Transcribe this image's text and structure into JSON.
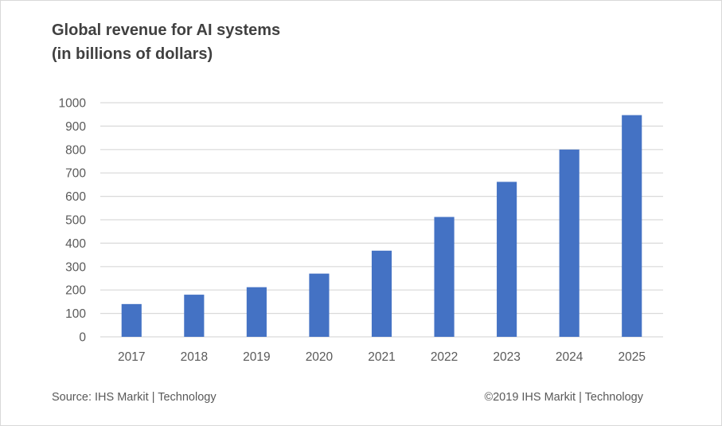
{
  "chart_data": {
    "type": "bar",
    "title_line1": "Global revenue for AI systems",
    "title_line2": "(in billions of dollars)",
    "categories": [
      "2017",
      "2018",
      "2019",
      "2020",
      "2021",
      "2022",
      "2023",
      "2024",
      "2025"
    ],
    "values": [
      140,
      180,
      212,
      270,
      368,
      512,
      662,
      800,
      947
    ],
    "ylim": [
      0,
      1000
    ],
    "yticks": [
      0,
      100,
      200,
      300,
      400,
      500,
      600,
      700,
      800,
      900,
      1000
    ],
    "xlabel": "",
    "ylabel": "",
    "grid": true,
    "legend": "none",
    "bar_color": "#4472c4",
    "grid_color": "#d9d9d9"
  },
  "footer": {
    "source": "Source: IHS Markit | Technology",
    "copyright": "©2019 IHS Markit | Technology"
  }
}
